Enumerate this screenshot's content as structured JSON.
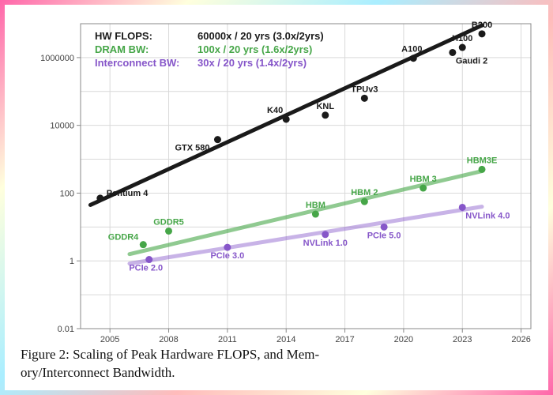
{
  "caption_line1": "Figure 2: Scaling of Peak Hardware FLOPS, and Mem-",
  "caption_line2": "ory/Interconnect Bandwidth.",
  "chart": {
    "type": "scatter-log",
    "background_color": "#ffffff",
    "grid_color": "#d9d9d9",
    "axis_color": "#888888",
    "x": {
      "min": 2003.5,
      "max": 2026.5,
      "ticks": [
        2005,
        2008,
        2011,
        2014,
        2017,
        2020,
        2023,
        2026
      ],
      "tick_labels": [
        "2005",
        "2008",
        "2011",
        "2014",
        "2017",
        "2020",
        "2023",
        "2026"
      ]
    },
    "y": {
      "log": true,
      "min_exp": -2,
      "max_exp": 7,
      "tick_exps": [
        -2,
        0,
        2,
        4,
        6
      ],
      "tick_labels": [
        "0.01",
        "1",
        "100",
        "10000",
        "1000000"
      ]
    },
    "legend": [
      {
        "label_a": "HW FLOPS:",
        "label_b": "60000x / 20 yrs (3.0x/2yrs)",
        "color": "#1a1a1a"
      },
      {
        "label_a": "DRAM BW:",
        "label_b": "100x / 20 yrs (1.6x/2yrs)",
        "color": "#46a648"
      },
      {
        "label_a": "Interconnect BW:",
        "label_b": "30x / 20 yrs (1.4x/2yrs)",
        "color": "#8656c9"
      }
    ],
    "legend_fontsize": 13,
    "series": [
      {
        "name": "flops",
        "color": "#1a1a1a",
        "marker_r": 4.5,
        "line_width": 5,
        "line": {
          "x1": 2004,
          "y_exp1": 1.65,
          "x2": 2024,
          "y_exp2": 6.95
        },
        "points": [
          {
            "x": 2004.5,
            "y_exp": 1.85,
            "label": "Pentium 4",
            "dx": 8,
            "dy": -3,
            "anchor": "start"
          },
          {
            "x": 2010.5,
            "y_exp": 3.58,
            "label": "GTX 580",
            "dx": -10,
            "dy": 14,
            "anchor": "end"
          },
          {
            "x": 2014.0,
            "y_exp": 4.18,
            "label": "K40",
            "dx": -4,
            "dy": -8,
            "anchor": "end"
          },
          {
            "x": 2016.0,
            "y_exp": 4.3,
            "label": "KNL",
            "dx": 0,
            "dy": -8,
            "anchor": "middle"
          },
          {
            "x": 2018.0,
            "y_exp": 4.8,
            "label": "TPUv3",
            "dx": 0,
            "dy": -8,
            "anchor": "middle"
          },
          {
            "x": 2020.5,
            "y_exp": 5.98,
            "label": "A100",
            "dx": -2,
            "dy": -8,
            "anchor": "middle"
          },
          {
            "x": 2022.5,
            "y_exp": 6.15,
            "label": "Gaudi 2",
            "dx": 4,
            "dy": 14,
            "anchor": "start"
          },
          {
            "x": 2023.0,
            "y_exp": 6.3,
            "label": "H100",
            "dx": 0,
            "dy": -8,
            "anchor": "middle"
          },
          {
            "x": 2024.0,
            "y_exp": 6.7,
            "label": "B200",
            "dx": 0,
            "dy": -8,
            "anchor": "middle"
          }
        ]
      },
      {
        "name": "dram",
        "color": "#46a648",
        "marker_r": 4.5,
        "line_width": 5,
        "line_opacity": 0.6,
        "line": {
          "x1": 2006,
          "y_exp1": 0.2,
          "x2": 2024,
          "y_exp2": 2.65
        },
        "points": [
          {
            "x": 2006.7,
            "y_exp": 0.48,
            "label": "GDDR4",
            "dx": -6,
            "dy": -6,
            "anchor": "end"
          },
          {
            "x": 2008.0,
            "y_exp": 0.88,
            "label": "GDDR5",
            "dx": 0,
            "dy": -8,
            "anchor": "middle"
          },
          {
            "x": 2015.5,
            "y_exp": 1.38,
            "label": "HBM",
            "dx": 0,
            "dy": -8,
            "anchor": "middle"
          },
          {
            "x": 2018.0,
            "y_exp": 1.75,
            "label": "HBM 2",
            "dx": 0,
            "dy": -8,
            "anchor": "middle"
          },
          {
            "x": 2021.0,
            "y_exp": 2.15,
            "label": "HBM 3",
            "dx": 0,
            "dy": -8,
            "anchor": "middle"
          },
          {
            "x": 2024.0,
            "y_exp": 2.7,
            "label": "HBM3E",
            "dx": 0,
            "dy": -8,
            "anchor": "middle"
          }
        ]
      },
      {
        "name": "interconnect",
        "color": "#8656c9",
        "marker_r": 4.5,
        "line_width": 5,
        "line_opacity": 0.45,
        "line": {
          "x1": 2006,
          "y_exp1": -0.08,
          "x2": 2024,
          "y_exp2": 1.6
        },
        "points": [
          {
            "x": 2007.0,
            "y_exp": 0.04,
            "label": "PCIe 2.0",
            "dx": -4,
            "dy": 14,
            "anchor": "middle"
          },
          {
            "x": 2011.0,
            "y_exp": 0.4,
            "label": "PCIe 3.0",
            "dx": 0,
            "dy": 14,
            "anchor": "middle"
          },
          {
            "x": 2016.0,
            "y_exp": 0.78,
            "label": "NVLink 1.0",
            "dx": 0,
            "dy": 14,
            "anchor": "middle"
          },
          {
            "x": 2019.0,
            "y_exp": 1.0,
            "label": "PCIe 5.0",
            "dx": 0,
            "dy": 14,
            "anchor": "middle"
          },
          {
            "x": 2023.0,
            "y_exp": 1.58,
            "label": "NVLink 4.0",
            "dx": 4,
            "dy": 14,
            "anchor": "start"
          }
        ]
      }
    ]
  }
}
